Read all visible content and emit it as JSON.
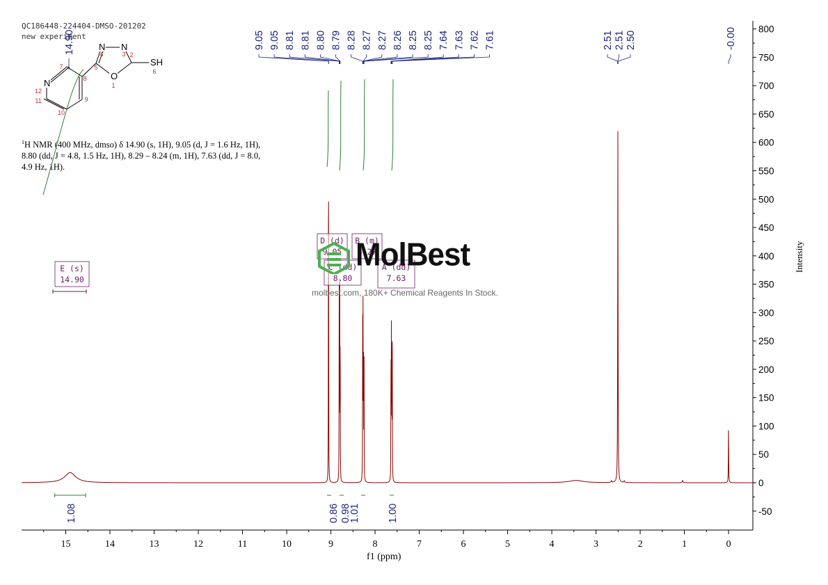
{
  "header": {
    "sample_id": "QC186448-224404-DMSO-201202",
    "experiment": "new experiment"
  },
  "description": {
    "nucleus": "1",
    "text": "H NMR (400 MHz, dmso) δ 14.90 (s, 1H), 9.05 (d, J = 1.6 Hz, 1H), 8.80 (dd, J = 4.8, 1.5 Hz, 1H), 8.29 – 8.24 (m, 1H), 7.63 (dd, J = 8.0, 4.9 Hz, 1H)."
  },
  "watermark": {
    "brand": "MolBest",
    "tagline": "molbest.com, 180K+ Chemical Reagents In Stock."
  },
  "molecule": {
    "atoms": [
      {
        "id": "n4",
        "symbol": "N",
        "number": "4"
      },
      {
        "id": "n3",
        "symbol": "N",
        "number": "3"
      },
      {
        "id": "c2",
        "symbol": "",
        "number": "2"
      },
      {
        "id": "c5",
        "symbol": "",
        "number": "5"
      },
      {
        "id": "o1",
        "symbol": "O",
        "number": "1"
      },
      {
        "id": "s6",
        "symbol": "SH",
        "number": "6"
      },
      {
        "id": "c7",
        "symbol": "",
        "number": "7"
      },
      {
        "id": "c8",
        "symbol": "",
        "number": "8"
      },
      {
        "id": "c9",
        "symbol": "",
        "number": "9"
      },
      {
        "id": "c10",
        "symbol": "",
        "number": "10"
      },
      {
        "id": "c11",
        "symbol": "",
        "number": "11"
      },
      {
        "id": "n12",
        "symbol": "N",
        "number": "12"
      }
    ]
  },
  "chart_data": {
    "type": "line",
    "title": "",
    "xlabel": "f1 (ppm)",
    "ylabel": "Intensity",
    "xlim": [
      16.0,
      -0.55
    ],
    "ylim": [
      -75,
      810
    ],
    "x_ticks": [
      "15",
      "14",
      "13",
      "12",
      "11",
      "10",
      "9",
      "8",
      "7",
      "6",
      "5",
      "4",
      "3",
      "2",
      "1",
      "0"
    ],
    "y_ticks": [
      "800",
      "750",
      "700",
      "650",
      "600",
      "550",
      "500",
      "450",
      "400",
      "350",
      "300",
      "250",
      "200",
      "150",
      "100",
      "50",
      "0",
      "-50"
    ],
    "peaks": [
      {
        "ppm": 14.9,
        "height": 18,
        "width": 0.15
      },
      {
        "ppm": 9.055,
        "height": 392,
        "width": 0.0025
      },
      {
        "ppm": 9.051,
        "height": 380,
        "width": 0.0025
      },
      {
        "ppm": 8.812,
        "height": 345,
        "width": 0.0025
      },
      {
        "ppm": 8.8,
        "height": 330,
        "width": 0.0025
      },
      {
        "ppm": 8.79,
        "height": 320,
        "width": 0.0025
      },
      {
        "ppm": 8.281,
        "height": 300,
        "width": 0.0025
      },
      {
        "ppm": 8.272,
        "height": 290,
        "width": 0.0025
      },
      {
        "ppm": 8.262,
        "height": 280,
        "width": 0.0025
      },
      {
        "ppm": 8.25,
        "height": 275,
        "width": 0.0025
      },
      {
        "ppm": 7.64,
        "height": 268,
        "width": 0.0025
      },
      {
        "ppm": 7.63,
        "height": 262,
        "width": 0.0025
      },
      {
        "ppm": 7.62,
        "height": 258,
        "width": 0.0025
      },
      {
        "ppm": 7.61,
        "height": 250,
        "width": 0.0025
      },
      {
        "ppm": 3.45,
        "height": 4,
        "width": 0.2
      },
      {
        "ppm": 2.65,
        "height": 3,
        "width": 0.01
      },
      {
        "ppm": 2.505,
        "height": 620,
        "width": 0.0045
      },
      {
        "ppm": 2.36,
        "height": 3,
        "width": 0.01
      },
      {
        "ppm": 1.04,
        "height": 4,
        "width": 0.01
      },
      {
        "ppm": 0.0,
        "height": 100,
        "width": 0.004
      }
    ],
    "peak_labels": [
      "9.05",
      "9.05",
      "8.81",
      "8.81",
      "8.80",
      "8.79",
      "8.28",
      "8.27",
      "8.27",
      "8.26",
      "8.25",
      "8.25",
      "7.64",
      "7.63",
      "7.62",
      "7.61"
    ],
    "peak_label_group2": [
      "2.51",
      "2.51",
      "2.50"
    ],
    "peak_label_group3": [
      "-0.00"
    ],
    "peak_label_hidden": "14.90",
    "multiplets": [
      {
        "letter": "E",
        "mult": "s",
        "shift": "14.90",
        "range": [
          15.25,
          14.55
        ]
      },
      {
        "letter": "D",
        "mult": "d",
        "shift": "9.05",
        "range": [
          9.1,
          9.0
        ]
      },
      {
        "letter": "B",
        "mult": "m",
        "shift": "8.27",
        "range": [
          8.3,
          8.22
        ]
      },
      {
        "letter": "C",
        "mult": "dd",
        "shift": "8.80",
        "range": [
          8.85,
          8.75
        ]
      },
      {
        "letter": "A",
        "mult": "dd",
        "shift": "7.63",
        "range": [
          7.66,
          7.59
        ]
      }
    ],
    "integrals": [
      {
        "value": "1.08",
        "range": [
          15.25,
          14.55
        ]
      },
      {
        "value": "0.86",
        "range": [
          9.1,
          9.0
        ]
      },
      {
        "value": "0.98",
        "range": [
          8.85,
          8.75
        ]
      },
      {
        "value": "1.01",
        "range": [
          8.3,
          8.22
        ]
      },
      {
        "value": "1.00",
        "range": [
          7.66,
          7.59
        ]
      }
    ],
    "colors": {
      "spectrum": "#8b0000",
      "labels": "#1a237e",
      "integral": "#2e7d32",
      "multiplet_box": "#6a1b6a",
      "watermark_logo": "#4caf50"
    }
  }
}
